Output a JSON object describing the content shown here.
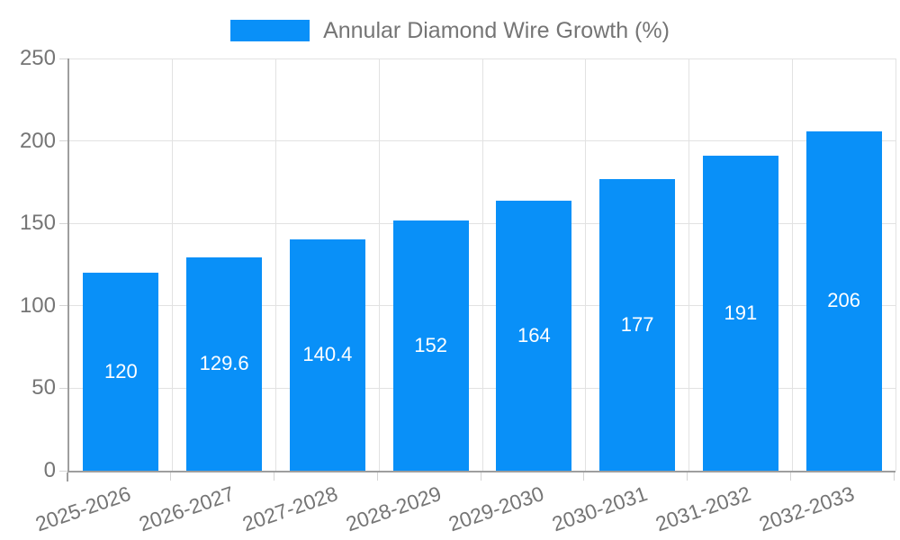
{
  "legend": {
    "label": "Annular Diamond Wire Growth (%)",
    "swatch_color": "#0990f8"
  },
  "chart_data": {
    "type": "bar",
    "title": "",
    "xlabel": "",
    "ylabel": "",
    "categories": [
      "2025-2026",
      "2026-2027",
      "2027-2028",
      "2028-2029",
      "2029-2030",
      "2030-2031",
      "2031-2032",
      "2032-2033"
    ],
    "values": [
      120,
      129.6,
      140.4,
      152,
      164,
      177,
      191,
      206
    ],
    "value_labels": [
      "120",
      "129.6",
      "140.4",
      "152",
      "164",
      "177",
      "191",
      "206"
    ],
    "ylim": [
      0,
      250
    ],
    "yticks": [
      0,
      50,
      100,
      150,
      200,
      250
    ],
    "grid": true,
    "legend_position": "top",
    "bar_color": "#0990f8",
    "value_label_color": "#ffffff",
    "axis_color": "#9e9e9e",
    "grid_color": "#e2e2e2",
    "text_color": "#757575"
  }
}
